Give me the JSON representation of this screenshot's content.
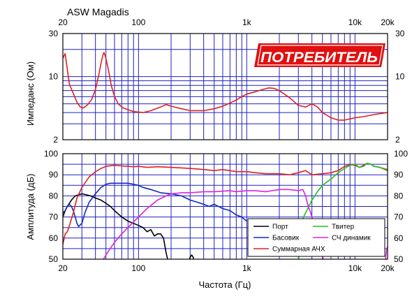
{
  "chart_data": [
    {
      "type": "line",
      "title": "ASW Magadis",
      "ylabel": "Импеданс (Ом)",
      "xscale": "log",
      "yscale": "log",
      "xlim": [
        20,
        20000
      ],
      "ylim": [
        2,
        30
      ],
      "x_ticks": [
        {
          "v": 20,
          "label": "20"
        },
        {
          "v": 100,
          "label": "100"
        },
        {
          "v": 1000,
          "label": "1k"
        },
        {
          "v": 10000,
          "label": "10k"
        },
        {
          "v": 20000,
          "label": "20k"
        }
      ],
      "y_ticks": [
        {
          "v": 2,
          "label": "2"
        },
        {
          "v": 10,
          "label": "10"
        },
        {
          "v": 30,
          "label": "30"
        }
      ],
      "grid": true,
      "series": [
        {
          "color": "#e02020",
          "points": [
            [
              20,
              16
            ],
            [
              21,
              18
            ],
            [
              22,
              12
            ],
            [
              23,
              8.2
            ],
            [
              25,
              6.5
            ],
            [
              27,
              5.2
            ],
            [
              29,
              4.6
            ],
            [
              31,
              4.5
            ],
            [
              34,
              4.9
            ],
            [
              37,
              5.6
            ],
            [
              40,
              7.2
            ],
            [
              43,
              10.5
            ],
            [
              45,
              14
            ],
            [
              47,
              17.5
            ],
            [
              48,
              18.5
            ],
            [
              50,
              16
            ],
            [
              53,
              11.5
            ],
            [
              56,
              8
            ],
            [
              60,
              6
            ],
            [
              65,
              5
            ],
            [
              72,
              4.5
            ],
            [
              80,
              4.3
            ],
            [
              90,
              4.1
            ],
            [
              110,
              4
            ],
            [
              130,
              4.2
            ],
            [
              160,
              4.6
            ],
            [
              180,
              4.9
            ],
            [
              200,
              4.7
            ],
            [
              250,
              4.4
            ],
            [
              300,
              4.2
            ],
            [
              400,
              4.2
            ],
            [
              500,
              4.4
            ],
            [
              600,
              4.7
            ],
            [
              700,
              5.1
            ],
            [
              800,
              5.5
            ],
            [
              900,
              6
            ],
            [
              1000,
              6.4
            ],
            [
              1200,
              6.8
            ],
            [
              1400,
              7.2
            ],
            [
              1600,
              7.5
            ],
            [
              1800,
              7.4
            ],
            [
              2000,
              7
            ],
            [
              2500,
              5.8
            ],
            [
              3000,
              4.8
            ],
            [
              3500,
              4.6
            ],
            [
              4000,
              5
            ],
            [
              4500,
              4.6
            ],
            [
              5000,
              4
            ],
            [
              6000,
              3.5
            ],
            [
              7000,
              3.3
            ],
            [
              8000,
              3.3
            ],
            [
              10000,
              3.5
            ],
            [
              12000,
              3.6
            ],
            [
              15000,
              3.8
            ],
            [
              20000,
              4
            ]
          ]
        }
      ]
    },
    {
      "type": "line",
      "xlabel": "Частота (Гц)",
      "ylabel": "Амплитуда (дБ)",
      "xscale": "log",
      "xlim": [
        20,
        20000
      ],
      "ylim": [
        50,
        100
      ],
      "x_ticks": [
        {
          "v": 20,
          "label": "20"
        },
        {
          "v": 100,
          "label": "100"
        },
        {
          "v": 1000,
          "label": "1k"
        },
        {
          "v": 10000,
          "label": "10k"
        },
        {
          "v": 20000,
          "label": "20k"
        }
      ],
      "y_ticks": [
        50,
        60,
        70,
        80,
        90,
        100
      ],
      "grid": true,
      "legend": "bottom-right",
      "series": [
        {
          "name": "Порт",
          "color": "#000000",
          "segments": [
            [
              [
                20,
                70
              ],
              [
                21,
                73
              ],
              [
                22,
                75
              ],
              [
                24,
                78
              ],
              [
                26,
                80
              ],
              [
                28,
                80.5
              ],
              [
                30,
                81
              ],
              [
                33,
                80.5
              ],
              [
                36,
                80
              ],
              [
                40,
                79
              ],
              [
                45,
                78
              ],
              [
                50,
                76.5
              ],
              [
                55,
                75
              ],
              [
                60,
                73
              ],
              [
                70,
                70
              ],
              [
                80,
                68
              ],
              [
                90,
                67
              ],
              [
                100,
                66
              ],
              [
                110,
                65
              ],
              [
                120,
                63
              ],
              [
                130,
                64
              ],
              [
                140,
                61
              ],
              [
                150,
                62
              ],
              [
                160,
                62
              ],
              [
                170,
                60
              ],
              [
                180,
                53
              ],
              [
                190,
                48
              ]
            ],
            [
              [
                290,
                48
              ],
              [
                300,
                51
              ],
              [
                310,
                52
              ],
              [
                320,
                51
              ],
              [
                330,
                48
              ]
            ]
          ]
        },
        {
          "name": "Басовик",
          "color": "#1028c0",
          "segments": [
            [
              [
                20,
                72
              ],
              [
                21,
                73
              ],
              [
                22,
                75
              ],
              [
                23,
                76
              ],
              [
                24,
                75
              ],
              [
                25,
                73
              ],
              [
                26,
                70
              ],
              [
                27,
                67
              ],
              [
                28,
                65.5
              ],
              [
                30,
                67
              ],
              [
                32,
                72
              ],
              [
                35,
                77
              ],
              [
                40,
                81
              ],
              [
                45,
                84
              ],
              [
                50,
                85.5
              ],
              [
                55,
                86
              ],
              [
                60,
                86
              ],
              [
                70,
                86
              ],
              [
                80,
                86
              ],
              [
                90,
                85.5
              ],
              [
                100,
                85
              ],
              [
                110,
                84
              ],
              [
                130,
                83
              ],
              [
                160,
                81.5
              ],
              [
                200,
                81
              ],
              [
                250,
                80
              ],
              [
                300,
                78
              ],
              [
                350,
                77
              ],
              [
                400,
                76
              ],
              [
                450,
                75
              ],
              [
                500,
                76
              ],
              [
                600,
                74
              ],
              [
                700,
                73
              ],
              [
                800,
                71
              ],
              [
                900,
                70
              ],
              [
                1000,
                68
              ]
            ]
          ]
        },
        {
          "name": "Суммарная АЧХ",
          "color": "#e02020",
          "segments": [
            [
              [
                20,
                57
              ],
              [
                21,
                62
              ],
              [
                22,
                63
              ],
              [
                23,
                66
              ],
              [
                25,
                72
              ],
              [
                27,
                79
              ],
              [
                30,
                84
              ],
              [
                35,
                89
              ],
              [
                40,
                91.5
              ],
              [
                45,
                93
              ],
              [
                50,
                94
              ],
              [
                60,
                94.5
              ],
              [
                70,
                94.2
              ],
              [
                80,
                94
              ],
              [
                90,
                93.8
              ],
              [
                100,
                94
              ],
              [
                120,
                93.5
              ],
              [
                150,
                93.8
              ],
              [
                200,
                93.5
              ],
              [
                300,
                93
              ],
              [
                400,
                92.5
              ],
              [
                500,
                92
              ],
              [
                600,
                92.5
              ],
              [
                800,
                91.5
              ],
              [
                1000,
                91.5
              ],
              [
                1200,
                91
              ],
              [
                1500,
                90.5
              ],
              [
                2000,
                90.5
              ],
              [
                2500,
                90
              ],
              [
                3000,
                91
              ],
              [
                3500,
                92
              ],
              [
                4000,
                90
              ],
              [
                5000,
                90.5
              ],
              [
                6000,
                91
              ],
              [
                7000,
                92
              ],
              [
                8000,
                94
              ],
              [
                9000,
                94.8
              ],
              [
                10000,
                94.5
              ],
              [
                11000,
                93.5
              ],
              [
                12000,
                94.5
              ],
              [
                13000,
                95.5
              ],
              [
                14000,
                95
              ],
              [
                15000,
                94
              ],
              [
                17000,
                93.5
              ],
              [
                20000,
                92
              ]
            ]
          ]
        },
        {
          "name": "Твитер",
          "color": "#20c020",
          "segments": [
            [
              [
                3000,
                48
              ],
              [
                3200,
                68
              ],
              [
                3500,
                72
              ],
              [
                4000,
                78
              ],
              [
                4500,
                82
              ],
              [
                5000,
                85
              ],
              [
                6000,
                88
              ],
              [
                7000,
                91
              ],
              [
                8000,
                93
              ],
              [
                9000,
                94.5
              ],
              [
                10000,
                95
              ],
              [
                11000,
                93.5
              ],
              [
                12000,
                94
              ],
              [
                13000,
                95.5
              ],
              [
                14000,
                95
              ],
              [
                15000,
                94
              ],
              [
                17000,
                93.5
              ],
              [
                20000,
                92.5
              ]
            ]
          ]
        },
        {
          "name": "СЧ динамик",
          "color": "#e020e0",
          "segments": [
            [
              [
                45,
                48
              ],
              [
                50,
                52
              ],
              [
                60,
                58
              ],
              [
                70,
                62
              ],
              [
                80,
                65
              ],
              [
                100,
                70
              ],
              [
                120,
                74
              ],
              [
                150,
                78
              ],
              [
                180,
                80
              ],
              [
                200,
                81
              ],
              [
                250,
                81.5
              ],
              [
                300,
                81.5
              ],
              [
                400,
                82
              ],
              [
                500,
                82
              ],
              [
                700,
                82.5
              ],
              [
                800,
                82
              ],
              [
                1000,
                82.5
              ],
              [
                1200,
                82.5
              ],
              [
                1500,
                82
              ],
              [
                2000,
                83
              ],
              [
                2500,
                83
              ],
              [
                3000,
                82.5
              ],
              [
                3300,
                83
              ],
              [
                3500,
                80
              ],
              [
                3700,
                75
              ],
              [
                3900,
                72
              ],
              [
                4000,
                70
              ],
              [
                4200,
                65
              ],
              [
                4500,
                60
              ],
              [
                4800,
                55
              ],
              [
                5000,
                52
              ],
              [
                5200,
                48
              ]
            ],
            [
              [
                19000,
                48
              ],
              [
                19500,
                54
              ],
              [
                20000,
                56
              ]
            ]
          ]
        }
      ]
    }
  ],
  "watermark_text": "ПОТРЕБИТЕЛЬ",
  "axis_color": "#000000",
  "grid_color": "#2020c0"
}
